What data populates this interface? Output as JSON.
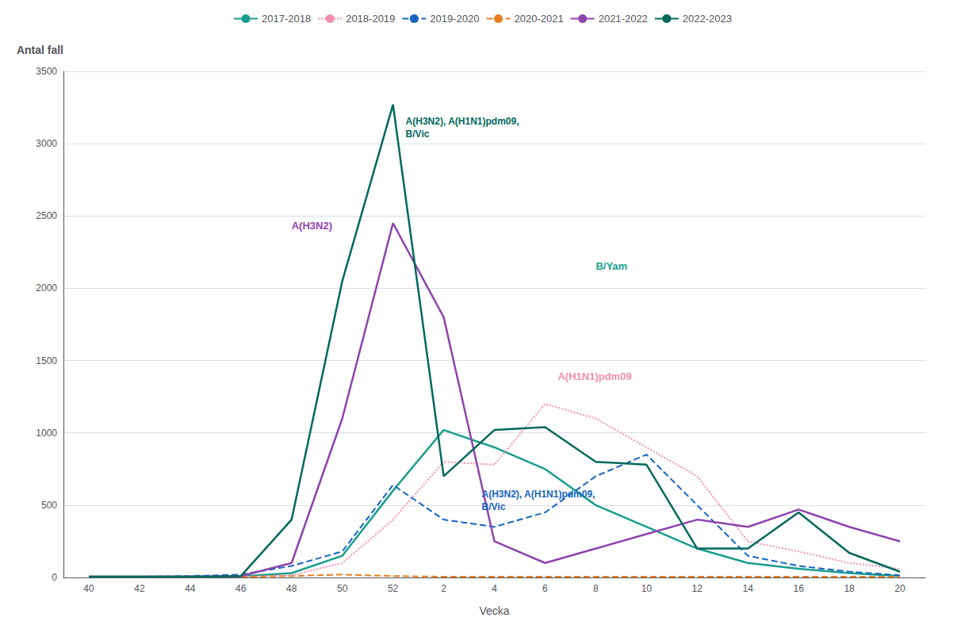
{
  "chart_data": {
    "type": "line",
    "xlabel": "Vecka",
    "ylabel": "Antal fall",
    "categories": [
      40,
      42,
      44,
      46,
      48,
      50,
      52,
      2,
      4,
      6,
      8,
      10,
      12,
      14,
      16,
      18,
      20
    ],
    "ylim": [
      0,
      3500
    ],
    "yticks": [
      0,
      500,
      1000,
      1500,
      2000,
      2500,
      3000,
      3500
    ],
    "grid": true,
    "legend": "top",
    "series": [
      {
        "name": "2017-2018",
        "color": "#1a9e8f",
        "line_style": "solid",
        "values": [
          5,
          5,
          5,
          8,
          30,
          150,
          600,
          1020,
          900,
          750,
          500,
          350,
          200,
          100,
          60,
          30,
          10
        ]
      },
      {
        "name": "2018-2019",
        "color": "#f48fb1",
        "line_style": "dotted",
        "values": [
          5,
          5,
          5,
          5,
          15,
          100,
          400,
          800,
          780,
          1200,
          1100,
          900,
          700,
          250,
          180,
          100,
          60
        ]
      },
      {
        "name": "2019-2020",
        "color": "#1565c0",
        "line_style": "dashed",
        "values": [
          5,
          5,
          10,
          20,
          80,
          180,
          640,
          400,
          350,
          450,
          700,
          850,
          500,
          150,
          80,
          40,
          15
        ]
      },
      {
        "name": "2020-2021",
        "color": "#e67e22",
        "line_style": "dashed",
        "values": [
          5,
          5,
          5,
          5,
          10,
          20,
          10,
          5,
          5,
          5,
          5,
          5,
          5,
          5,
          5,
          5,
          5
        ]
      },
      {
        "name": "2021-2022",
        "color": "#8e44ad",
        "line_style": "solid",
        "values": [
          5,
          5,
          5,
          10,
          100,
          1100,
          2450,
          1800,
          250,
          100,
          200,
          300,
          400,
          350,
          470,
          350,
          250
        ]
      },
      {
        "name": "2022-2023",
        "color": "#00695c",
        "line_style": "solid",
        "values": [
          5,
          5,
          5,
          10,
          400,
          2050,
          3270,
          700,
          1020,
          1040,
          800,
          780,
          200,
          200,
          450,
          170,
          40
        ]
      }
    ],
    "annotations": [
      {
        "text": "A(H3N2)",
        "color": "#8e44ad"
      },
      {
        "text": "A(H3N2), A(H1N1)pdm09,\nB/Vic",
        "color": "#00695c"
      },
      {
        "text": "B/Yam",
        "color": "#1a9e8f"
      },
      {
        "text": "A(H1N1)pdm09",
        "color": "#f48fb1"
      },
      {
        "text": "A(H3N2), A(H1N1)pdm09,\nB/Vic",
        "color": "#1565c0"
      }
    ]
  }
}
